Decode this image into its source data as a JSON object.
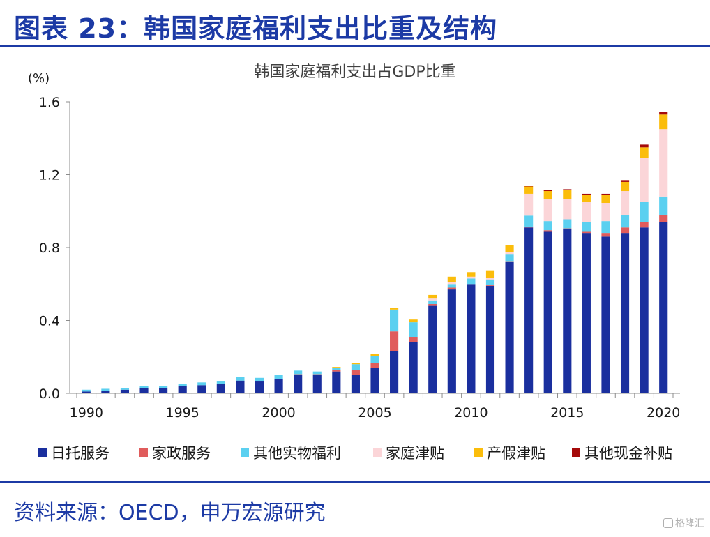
{
  "page": {
    "title": "图表 23：韩国家庭福利支出比重及结构",
    "source": "资料来源：OECD，申万宏源研究",
    "watermark": "格隆汇"
  },
  "chart_data": {
    "type": "bar",
    "stacked": true,
    "title": "韩国家庭福利支出占GDP比重",
    "ylabel": "(%)",
    "xlabel": "",
    "ylim": [
      0,
      1.6
    ],
    "yticks": [
      "0.0",
      "0.4",
      "0.8",
      "1.2",
      "1.6"
    ],
    "ytick_values": [
      0,
      0.4,
      0.8,
      1.2,
      1.6
    ],
    "xtick_labels": [
      "1990",
      "1995",
      "2000",
      "2005",
      "2010",
      "2015",
      "2020"
    ],
    "grid": false,
    "legend_position": "bottom",
    "categories": [
      1990,
      1991,
      1992,
      1993,
      1994,
      1995,
      1996,
      1997,
      1998,
      1999,
      2000,
      2001,
      2002,
      2003,
      2004,
      2005,
      2006,
      2007,
      2008,
      2009,
      2010,
      2011,
      2012,
      2013,
      2014,
      2015,
      2016,
      2017,
      2018,
      2019,
      2020
    ],
    "series": [
      {
        "name": "日托服务",
        "color": "#1a2f9e",
        "values": [
          0.01,
          0.015,
          0.02,
          0.03,
          0.03,
          0.04,
          0.045,
          0.05,
          0.07,
          0.065,
          0.08,
          0.1,
          0.1,
          0.12,
          0.1,
          0.14,
          0.23,
          0.28,
          0.48,
          0.57,
          0.6,
          0.59,
          0.72,
          0.91,
          0.89,
          0.9,
          0.88,
          0.86,
          0.88,
          0.91,
          0.94
        ]
      },
      {
        "name": "家政服务",
        "color": "#e05c5c",
        "values": [
          0,
          0,
          0,
          0,
          0,
          0,
          0,
          0,
          0,
          0,
          0,
          0.005,
          0.005,
          0.01,
          0.03,
          0.025,
          0.11,
          0.03,
          0.01,
          0.01,
          0,
          0.005,
          0.005,
          0.005,
          0.005,
          0.005,
          0.01,
          0.02,
          0.03,
          0.03,
          0.04
        ]
      },
      {
        "name": "其他实物福利",
        "color": "#5bd0f0",
        "values": [
          0.01,
          0.01,
          0.01,
          0.01,
          0.01,
          0.01,
          0.015,
          0.015,
          0.02,
          0.02,
          0.02,
          0.02,
          0.015,
          0.01,
          0.03,
          0.04,
          0.12,
          0.08,
          0.02,
          0.02,
          0.03,
          0.03,
          0.04,
          0.06,
          0.05,
          0.05,
          0.05,
          0.065,
          0.07,
          0.11,
          0.1
        ]
      },
      {
        "name": "家庭津贴",
        "color": "#fbd5d8",
        "values": [
          0,
          0,
          0,
          0,
          0,
          0,
          0,
          0,
          0,
          0,
          0,
          0,
          0,
          0,
          0,
          0,
          0,
          0,
          0.01,
          0.01,
          0.01,
          0.01,
          0.01,
          0.12,
          0.12,
          0.11,
          0.11,
          0.1,
          0.13,
          0.24,
          0.37
        ]
      },
      {
        "name": "产假津贴",
        "color": "#fbbd0b",
        "values": [
          0,
          0,
          0,
          0,
          0,
          0,
          0,
          0,
          0,
          0,
          0,
          0,
          0,
          0.005,
          0.005,
          0.01,
          0.01,
          0.015,
          0.02,
          0.03,
          0.025,
          0.04,
          0.04,
          0.04,
          0.045,
          0.05,
          0.04,
          0.045,
          0.05,
          0.06,
          0.08
        ]
      },
      {
        "name": "其他现金补贴",
        "color": "#a50a0a",
        "values": [
          0,
          0,
          0,
          0,
          0,
          0,
          0,
          0,
          0,
          0,
          0,
          0,
          0,
          0,
          0,
          0,
          0,
          0,
          0,
          0,
          0,
          0,
          0,
          0.005,
          0.005,
          0.005,
          0.005,
          0.005,
          0.01,
          0.015,
          0.015
        ]
      }
    ]
  }
}
